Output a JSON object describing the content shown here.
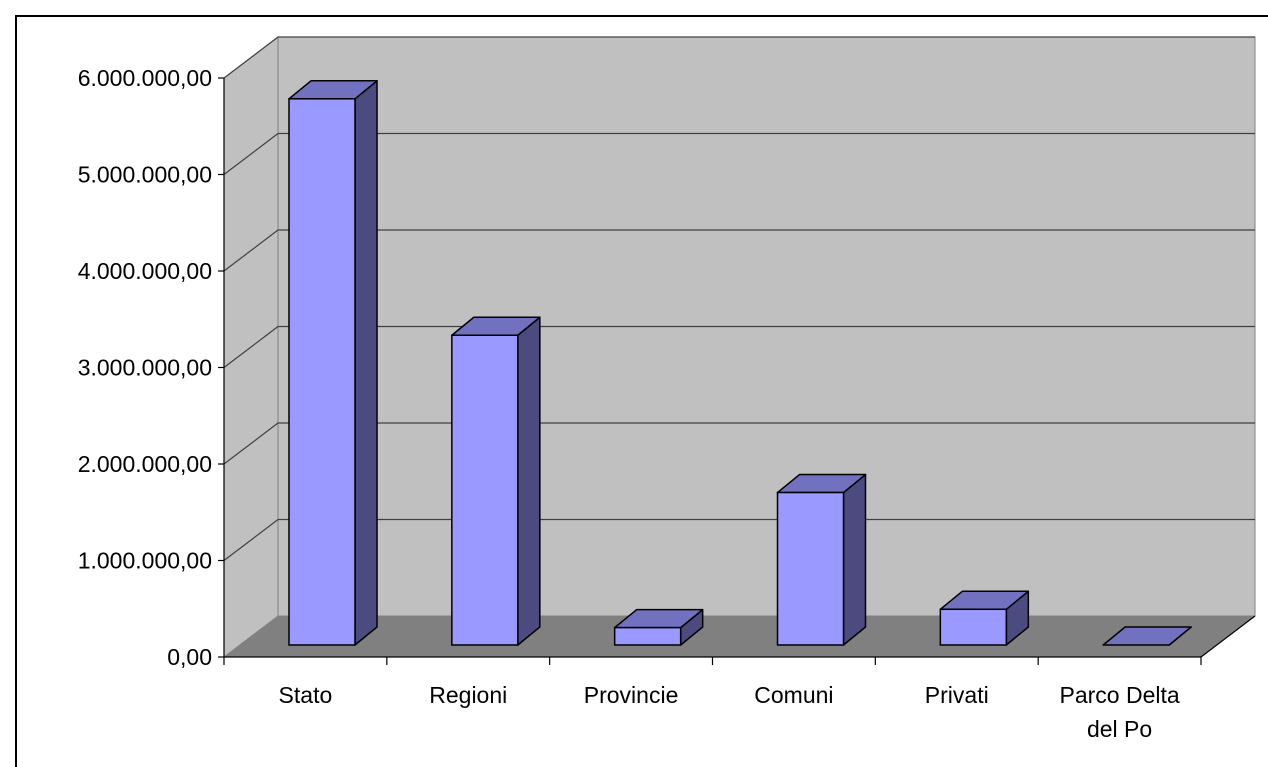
{
  "chart_data": {
    "type": "bar",
    "title": "",
    "xlabel": "",
    "ylabel": "",
    "categories": [
      "Stato",
      "Regioni",
      "Provincie",
      "Comuni",
      "Privati",
      "Parco Delta del Po"
    ],
    "values": [
      5660000,
      3210000,
      180000,
      1580000,
      370000,
      0
    ],
    "ylim": [
      0,
      6000000
    ],
    "y_ticks": [
      0,
      1000000,
      2000000,
      3000000,
      4000000,
      5000000,
      6000000
    ],
    "y_tick_labels": [
      "0,00",
      "1.000.000,00",
      "2.000.000,00",
      "3.000.000,00",
      "4.000.000,00",
      "5.000.000,00",
      "6.000.000,00"
    ],
    "grid": true,
    "legend": "none",
    "style": "3d",
    "colors": {
      "bar_front": "#9999ff",
      "bar_side": "#4b4b80",
      "bar_top": "#7171bf",
      "back_wall": "#c0c0c0",
      "side_wall": "#c0c0c0",
      "floor": "#808080",
      "gridline": "#404040"
    }
  }
}
